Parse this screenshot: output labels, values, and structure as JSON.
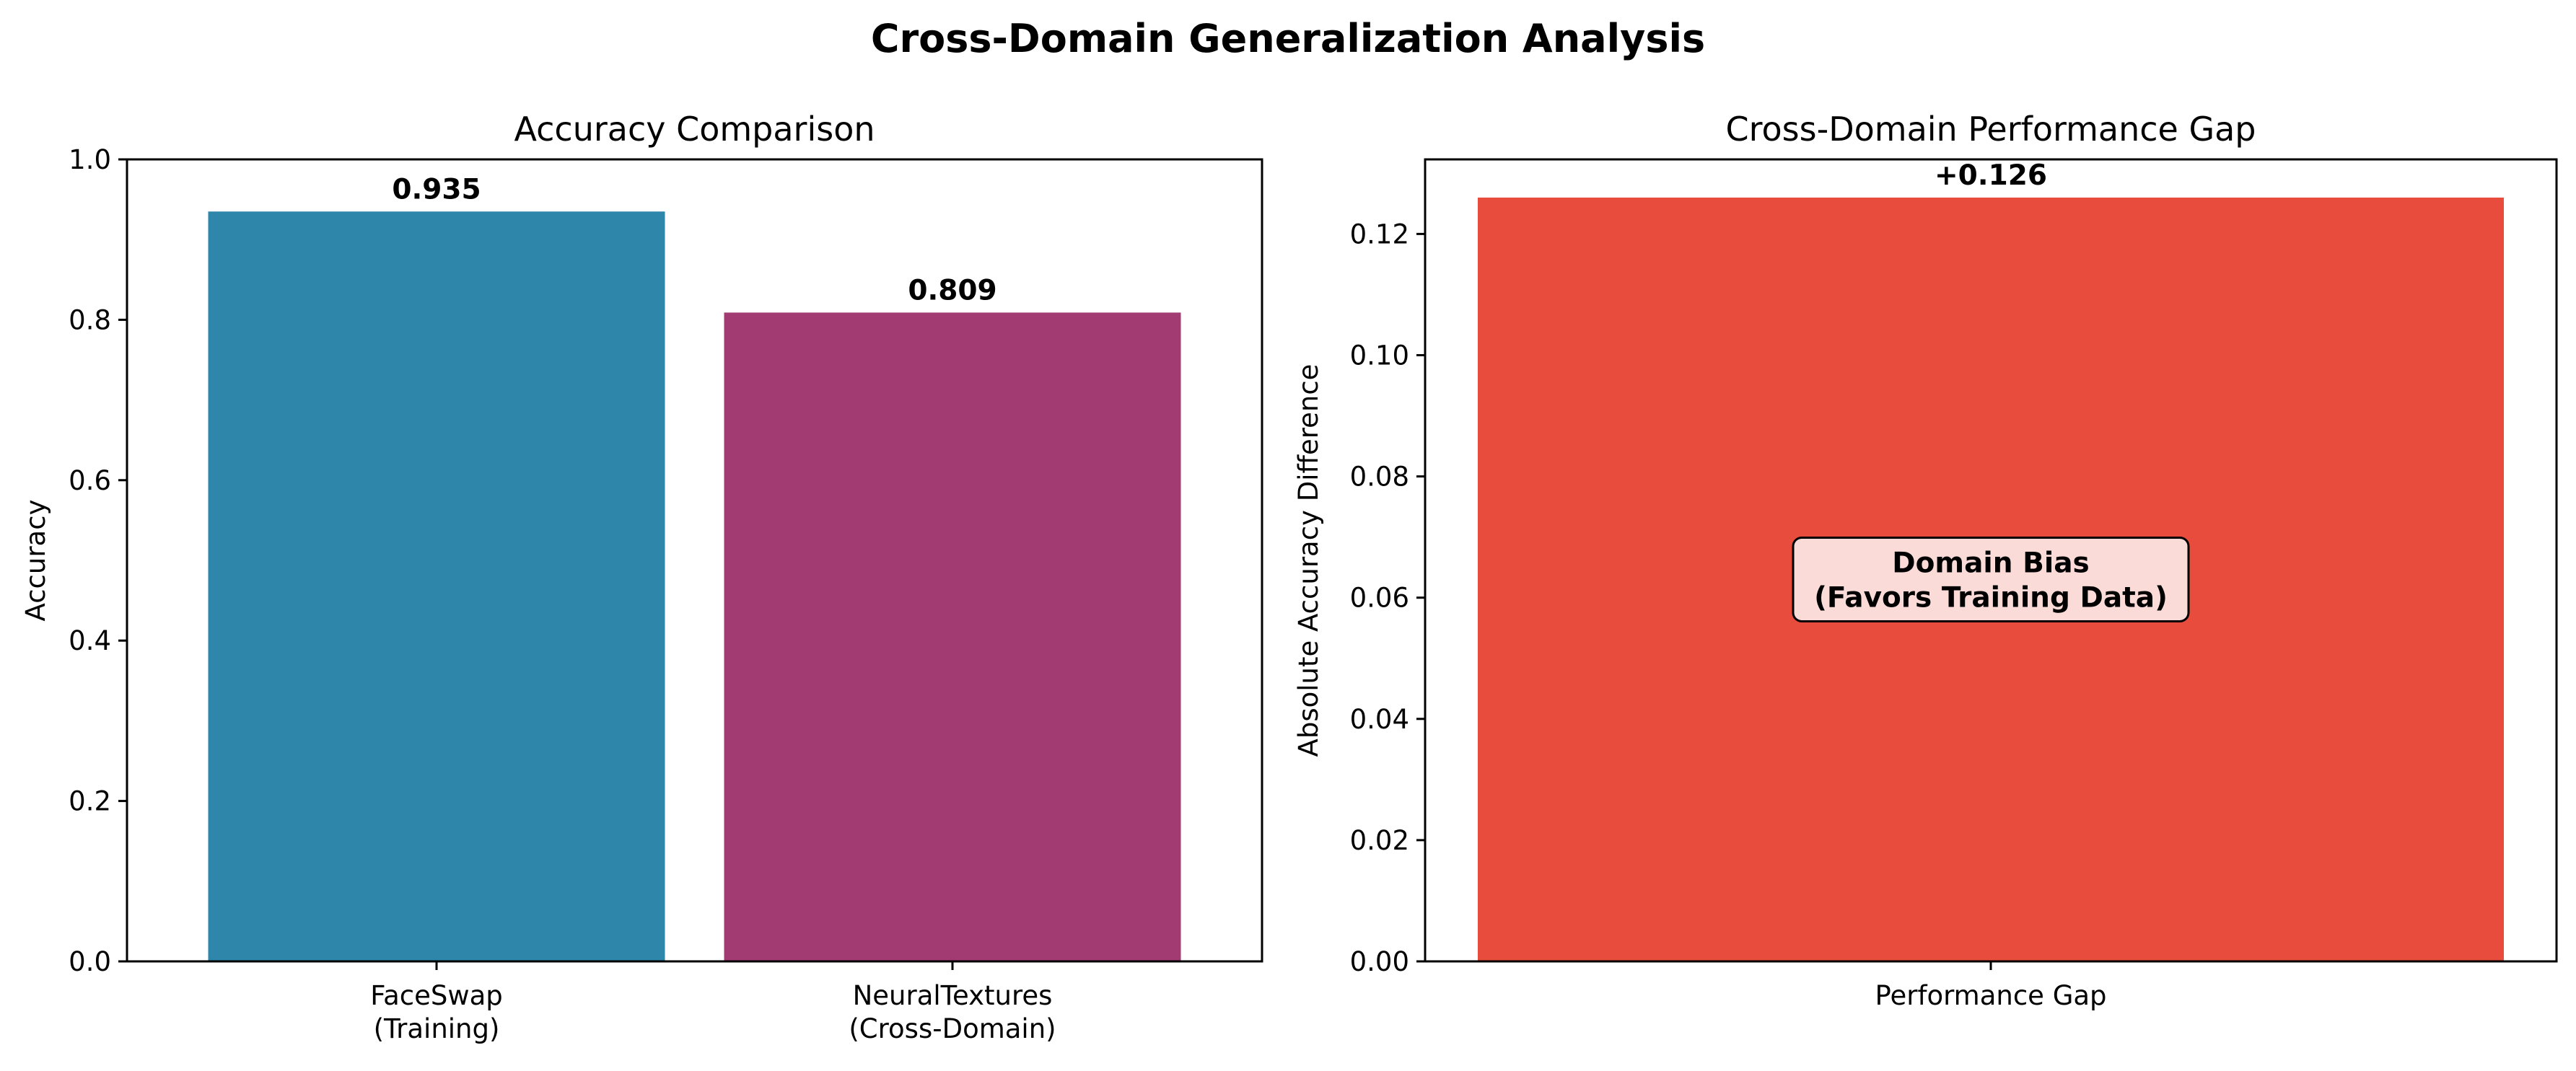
{
  "figure": {
    "suptitle": "Cross-Domain Generalization Analysis"
  },
  "colors": {
    "faceswap": "#2E86AB",
    "neuraltextures": "#A23B72",
    "gap": "#E74C3C",
    "annotation_box_fill": "#FADBD8",
    "axis": "#000000"
  },
  "chart_data": [
    {
      "type": "bar",
      "title": "Accuracy Comparison",
      "xlabel": "",
      "ylabel": "Accuracy",
      "categories": [
        [
          "FaceSwap",
          "(Training)"
        ],
        [
          "NeuralTextures",
          "(Cross-Domain)"
        ]
      ],
      "values": [
        0.935,
        0.809
      ],
      "value_labels": [
        "0.935",
        "0.809"
      ],
      "ylim": [
        0,
        1.0
      ],
      "yticks": [
        0.0,
        0.2,
        0.4,
        0.6,
        0.8,
        1.0
      ],
      "ytick_labels": [
        "0.0",
        "0.2",
        "0.4",
        "0.6",
        "0.8",
        "1.0"
      ],
      "grid": false
    },
    {
      "type": "bar",
      "title": "Cross-Domain Performance Gap",
      "xlabel": "",
      "ylabel": "Absolute Accuracy Difference",
      "categories": [
        [
          "Performance Gap"
        ]
      ],
      "values": [
        0.126
      ],
      "value_labels": [
        "+0.126"
      ],
      "ylim": [
        0,
        0.1323
      ],
      "yticks": [
        0.0,
        0.02,
        0.04,
        0.06,
        0.08,
        0.1,
        0.12
      ],
      "ytick_labels": [
        "0.00",
        "0.02",
        "0.04",
        "0.06",
        "0.08",
        "0.10",
        "0.12"
      ],
      "annotation": [
        "Domain Bias",
        "(Favors Training Data)"
      ],
      "annotation_y": 0.063,
      "grid": false
    }
  ]
}
